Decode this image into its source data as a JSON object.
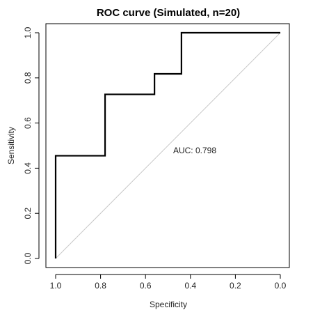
{
  "chart_data": {
    "type": "line",
    "title": "ROC curve (Simulated, n=20)",
    "xlabel": "Specificity",
    "ylabel": "Sensitivity",
    "xlim": [
      1.0,
      0.0
    ],
    "ylim": [
      0.0,
      1.0
    ],
    "x_reversed": true,
    "x_ticks": [
      "1.0",
      "0.8",
      "0.6",
      "0.4",
      "0.2",
      "0.0"
    ],
    "y_ticks": [
      "0.0",
      "0.2",
      "0.4",
      "0.6",
      "0.8",
      "1.0"
    ],
    "annotation": "AUC: 0.798",
    "grid": false,
    "series": [
      {
        "specificity": [
          1.0,
          1.0,
          0.78,
          0.78,
          0.56,
          0.56,
          0.44,
          0.44,
          0.0
        ],
        "sensitivity": [
          0.0,
          0.455,
          0.455,
          0.727,
          0.727,
          0.818,
          0.818,
          1.0,
          1.0
        ],
        "color": "#000000"
      }
    ],
    "reference_line": {
      "color": "#c8c8c8"
    }
  }
}
